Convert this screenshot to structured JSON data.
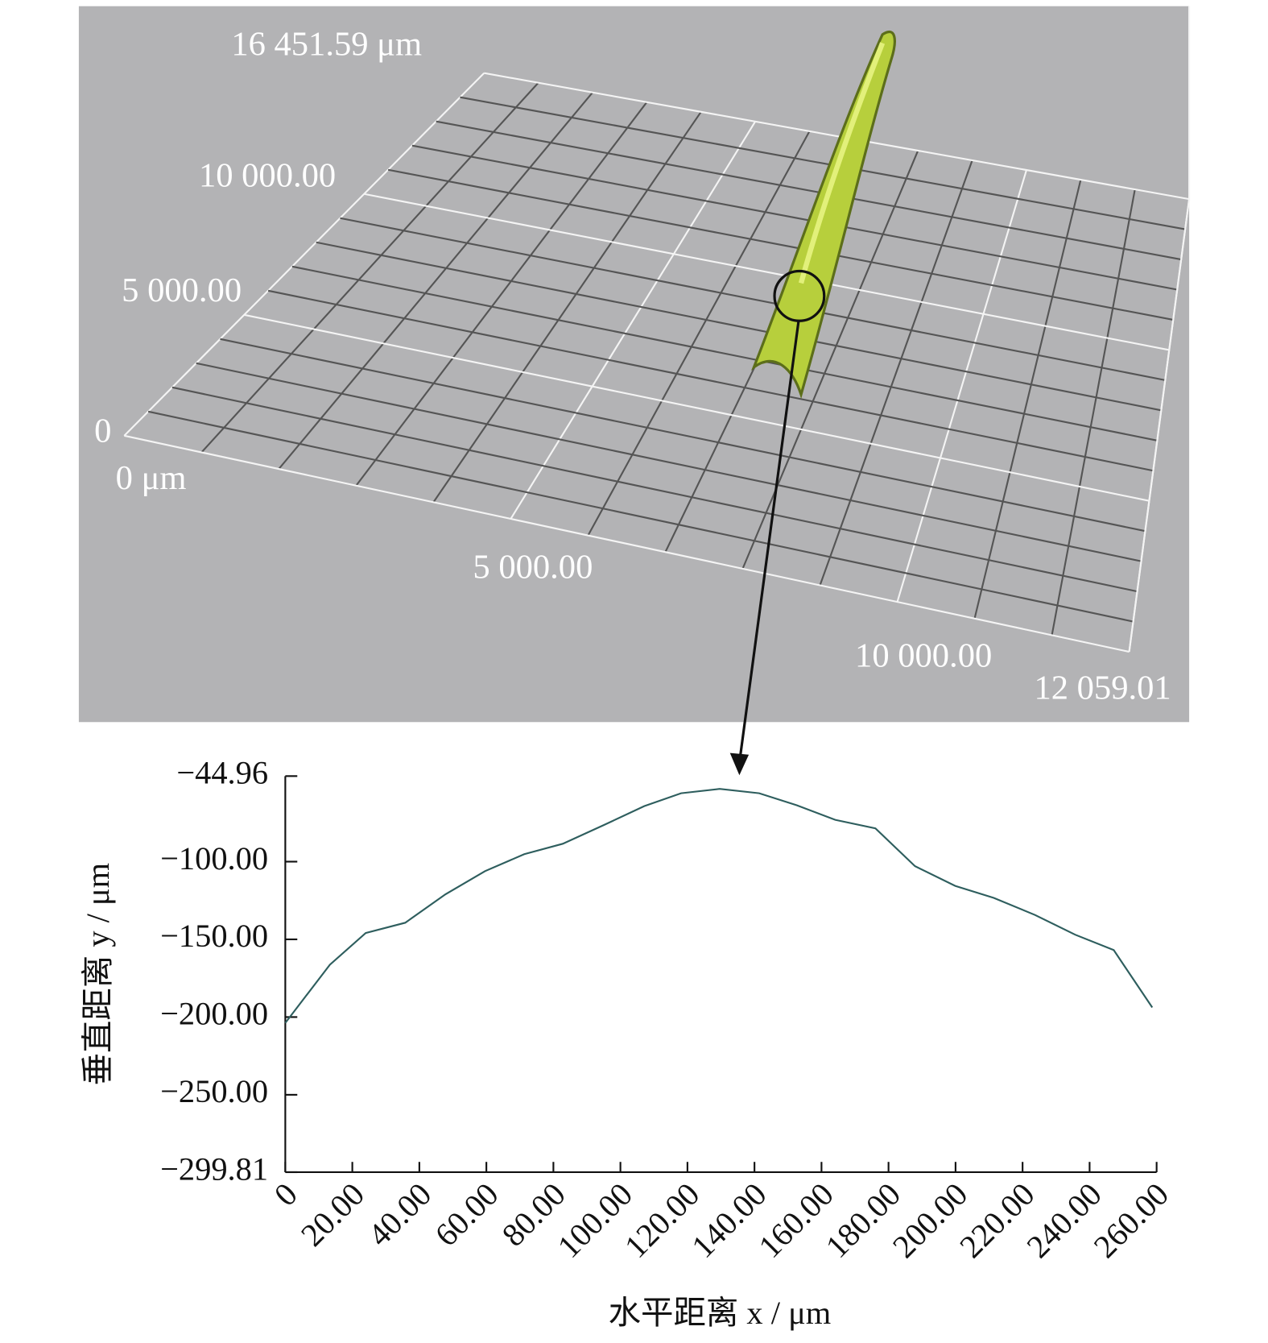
{
  "chart_data": [
    {
      "type": "3d-surface",
      "vertical_labels": [
        "16 451.59 μm",
        "10 000.00",
        "5 000.00",
        "0"
      ],
      "horizontal_labels": [
        "0 μm",
        "5 000.00",
        "10 000.00",
        "12 059.01"
      ]
    },
    {
      "type": "line",
      "x_label": "水平距离 x / μm",
      "y_label": "垂直距离 y / μm",
      "x": [
        0,
        13.3,
        24,
        35.8,
        47.8,
        59.6,
        71.3,
        82.8,
        95.1,
        107.1,
        118.1,
        129.6,
        141.4,
        152.6,
        164.1,
        176.1,
        187.9,
        199.9,
        211.4,
        223.7,
        235.7,
        247.2,
        258.7
      ],
      "series": [
        {
          "color": "#2e5e5e",
          "values": [
            -203.8,
            -166.3,
            -145.9,
            -139.3,
            -121,
            -106.1,
            -95.2,
            -88.5,
            -76.4,
            -64.3,
            -56,
            -53.2,
            -56,
            -63.7,
            -73.1,
            -78.6,
            -102.9,
            -115.6,
            -123.3,
            -134.3,
            -147,
            -156.9,
            -193.8
          ]
        }
      ],
      "xlim": [
        0,
        260
      ],
      "ylim": [
        -299.81,
        -44.96
      ],
      "xticks": [
        0,
        {
          "value": 20,
          "label": "20.00"
        },
        {
          "value": 40,
          "label": "40.00"
        },
        {
          "value": 60,
          "label": "60.00"
        },
        {
          "value": 80,
          "label": "80.00"
        },
        {
          "value": 100,
          "label": "100.00"
        },
        {
          "value": 120,
          "label": "120.00"
        },
        {
          "value": 140,
          "label": "140.00"
        },
        {
          "value": 160,
          "label": "160.00"
        },
        {
          "value": 180,
          "label": "180.00"
        },
        {
          "value": 200,
          "label": "200.00"
        },
        {
          "value": 220,
          "label": "220.00"
        },
        {
          "value": 240,
          "label": "240.00"
        },
        {
          "value": 260,
          "label": "260.00"
        }
      ],
      "yticks": [
        {
          "value": -44.96,
          "label": "−44.96"
        },
        {
          "value": -100,
          "label": "−100.00"
        },
        {
          "value": -150,
          "label": "−150.00"
        },
        {
          "value": -200,
          "label": "−200.00"
        },
        {
          "value": -250,
          "label": "−250.00"
        },
        {
          "value": -299.81,
          "label": "−299.81"
        }
      ]
    }
  ]
}
